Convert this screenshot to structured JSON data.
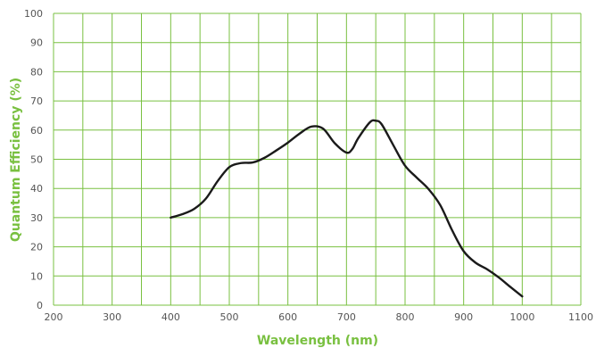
{
  "chart_data": {
    "type": "line",
    "title": "",
    "xlabel": "Wavelength (nm)",
    "ylabel": "Quantum Efficiency (%)",
    "xlim": [
      200,
      1100
    ],
    "ylim": [
      0,
      100
    ],
    "x_ticks": [
      200,
      300,
      400,
      500,
      600,
      700,
      800,
      900,
      1000,
      1100
    ],
    "y_ticks": [
      0,
      10,
      20,
      30,
      40,
      50,
      60,
      70,
      80,
      90,
      100
    ],
    "x_grid_step": 50,
    "y_grid_step": 10,
    "grid": true,
    "legend": "none",
    "colors": {
      "grid": "#79c040",
      "axis_title": "#79c040",
      "line": "#1a1a1a",
      "tick_label": "#555555"
    },
    "series": [
      {
        "x": [
          400,
          420,
          440,
          460,
          480,
          500,
          520,
          540,
          560,
          580,
          600,
          620,
          640,
          660,
          680,
          700,
          710,
          720,
          740,
          750,
          760,
          780,
          800,
          820,
          840,
          860,
          880,
          900,
          920,
          940,
          960,
          980,
          1000
        ],
        "values": [
          30,
          31.2,
          33,
          36.5,
          42.5,
          47.3,
          48.7,
          48.9,
          50.5,
          53,
          55.7,
          58.8,
          61.2,
          60.5,
          55.5,
          52.3,
          53.5,
          57.2,
          62.7,
          63.2,
          62,
          54.8,
          47.8,
          43.7,
          39.8,
          34.3,
          25.8,
          18.5,
          14.6,
          12.3,
          9.5,
          6.2,
          3
        ]
      }
    ]
  }
}
